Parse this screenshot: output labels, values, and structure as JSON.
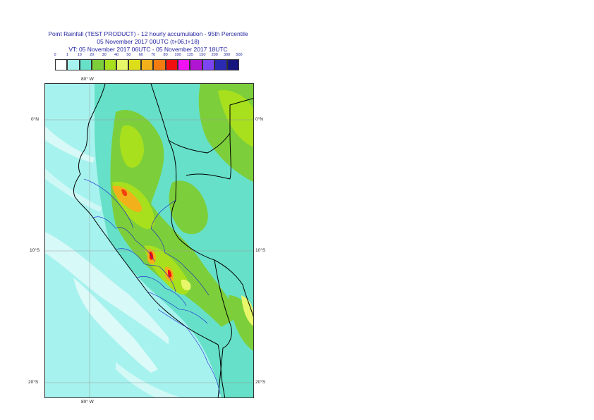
{
  "title": {
    "line1": "Point Rainfall (TEST PRODUCT) - 12 hourly accumulation - 95th Percentile",
    "line2": "05 November 2017 00UTC (t+06,t+18)",
    "line3": "VT: 05 November 2017 06UTC - 05 November 2017 18UTC"
  },
  "legend": {
    "thresholds": [
      "0",
      "1",
      "10",
      "20",
      "30",
      "40",
      "50",
      "60",
      "70",
      "80",
      "100",
      "125",
      "150",
      "200",
      "300",
      "500"
    ],
    "colors": [
      "#ffffff",
      "#a6f2ee",
      "#66e0c8",
      "#7ccf3a",
      "#a8e01e",
      "#e8f76a",
      "#ddde1a",
      "#f2b01a",
      "#f37b0f",
      "#f20f0f",
      "#f012f0",
      "#b015d2",
      "#7d45f2",
      "#2a2ab2",
      "#15157d"
    ]
  },
  "axes": {
    "lon_top": "80° W",
    "lon_bottom": "80° W",
    "lat_labels": [
      "0°N",
      "10°S",
      "20°S"
    ]
  },
  "map_colors": {
    "ocean": "#a6f2ee",
    "land_low": "#66e0c8",
    "land_mid": "#7ccf3a",
    "land_high": "#a8e01e",
    "peak_yellow": "#e8f76a",
    "peak_orange": "#f2b01a",
    "peak_red": "#f20f0f",
    "coast": "#000000",
    "admin": "#1a1ad2",
    "grid": "#9a9a9a"
  }
}
